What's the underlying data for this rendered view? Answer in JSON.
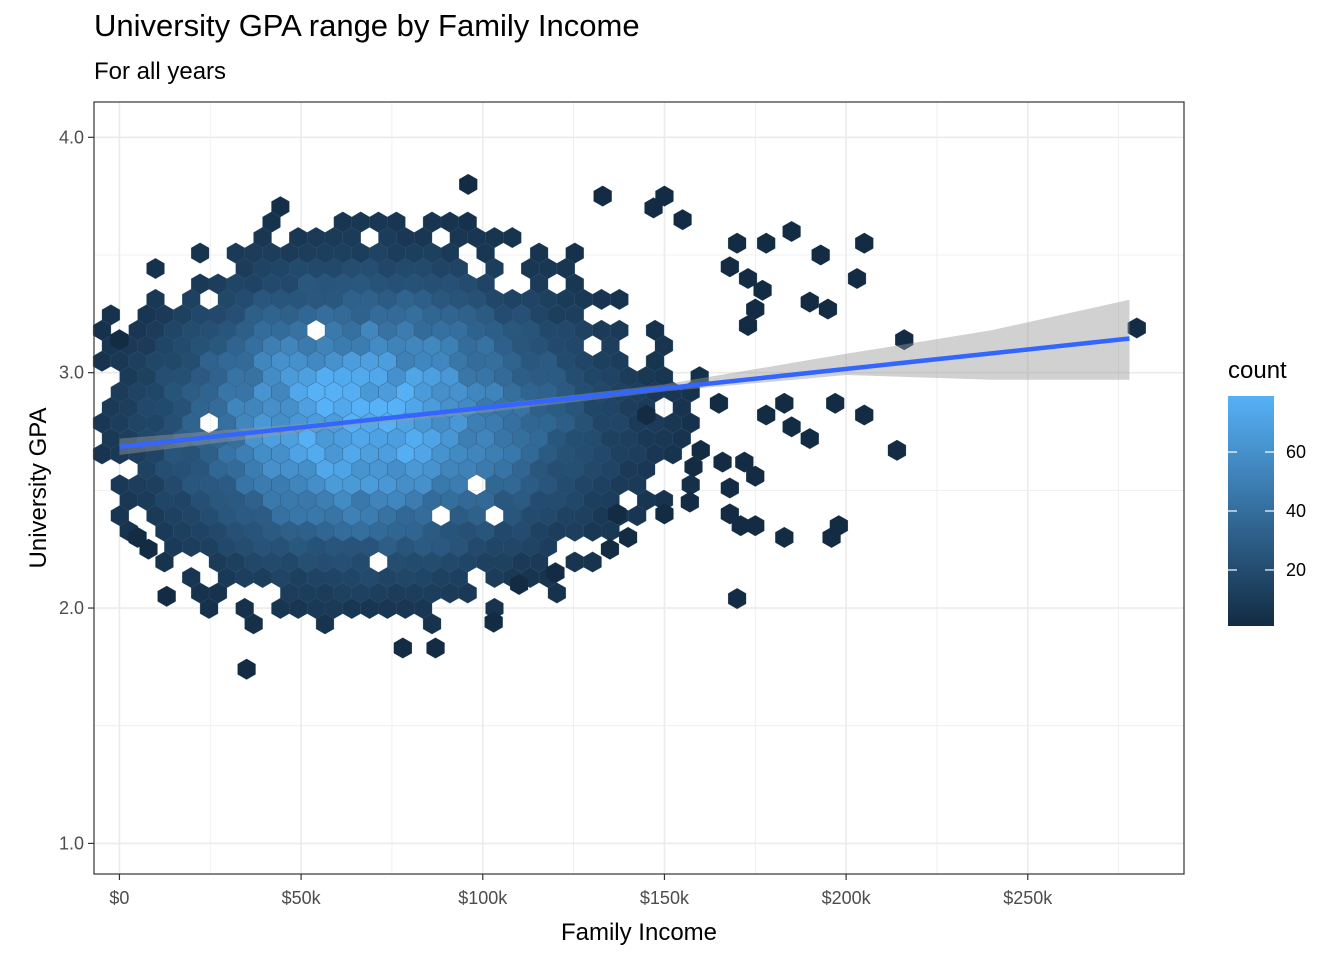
{
  "title": "University GPA range by Family Income",
  "subtitle": "For all years",
  "chart_data": {
    "type": "hexbin",
    "title": "University GPA range by Family Income",
    "subtitle": "For all years",
    "xlabel": "Family Income",
    "ylabel": "University GPA",
    "xlim": [
      -7000,
      293000
    ],
    "ylim": [
      0.87,
      4.15
    ],
    "x_ticks": [
      {
        "value": 0,
        "label": "$0"
      },
      {
        "value": 50000,
        "label": "$50k"
      },
      {
        "value": 100000,
        "label": "$100k"
      },
      {
        "value": 150000,
        "label": "$150k"
      },
      {
        "value": 200000,
        "label": "$200k"
      },
      {
        "value": 250000,
        "label": "$250k"
      }
    ],
    "y_ticks": [
      {
        "value": 1.0,
        "label": "1.0"
      },
      {
        "value": 2.0,
        "label": "2.0"
      },
      {
        "value": 3.0,
        "label": "3.0"
      },
      {
        "value": 4.0,
        "label": "4.0"
      }
    ],
    "grid": true,
    "legend": {
      "title": "count",
      "position": "right",
      "range": [
        1,
        79
      ],
      "ticks": [
        20,
        40,
        60
      ],
      "colors": {
        "low": "#132b43",
        "high": "#56b1f7"
      }
    },
    "density": {
      "center_income": 64000,
      "center_gpa": 2.8,
      "peak_count": 79,
      "income_sd": 32000,
      "gpa_sd": 0.38
    },
    "outliers": [
      {
        "x": 0,
        "y": 3.14
      },
      {
        "x": 280000,
        "y": 3.19
      },
      {
        "x": 216000,
        "y": 3.14
      },
      {
        "x": 214000,
        "y": 2.67
      },
      {
        "x": 205000,
        "y": 2.82
      },
      {
        "x": 203000,
        "y": 3.4
      },
      {
        "x": 205000,
        "y": 3.55
      },
      {
        "x": 197000,
        "y": 2.87
      },
      {
        "x": 170000,
        "y": 2.04
      },
      {
        "x": 183000,
        "y": 2.3
      },
      {
        "x": 196000,
        "y": 2.3
      },
      {
        "x": 198000,
        "y": 2.35
      },
      {
        "x": 190000,
        "y": 2.72
      },
      {
        "x": 172000,
        "y": 2.62
      },
      {
        "x": 175000,
        "y": 2.56
      },
      {
        "x": 168000,
        "y": 2.51
      },
      {
        "x": 168000,
        "y": 2.4
      },
      {
        "x": 171000,
        "y": 2.35
      },
      {
        "x": 175000,
        "y": 2.35
      },
      {
        "x": 96000,
        "y": 3.8
      },
      {
        "x": 133000,
        "y": 3.75
      },
      {
        "x": 150000,
        "y": 3.75
      },
      {
        "x": 147000,
        "y": 3.7
      },
      {
        "x": 155000,
        "y": 3.65
      },
      {
        "x": 170000,
        "y": 3.55
      },
      {
        "x": 178000,
        "y": 3.55
      },
      {
        "x": 185000,
        "y": 3.6
      },
      {
        "x": 193000,
        "y": 3.5
      },
      {
        "x": 190000,
        "y": 3.3
      },
      {
        "x": 195000,
        "y": 3.27
      },
      {
        "x": 5000,
        "y": 2.3
      },
      {
        "x": 8000,
        "y": 2.25
      },
      {
        "x": 13000,
        "y": 2.05
      },
      {
        "x": 35000,
        "y": 1.74
      },
      {
        "x": 78000,
        "y": 1.83
      },
      {
        "x": 87000,
        "y": 1.83
      },
      {
        "x": 103000,
        "y": 1.94
      },
      {
        "x": 110000,
        "y": 2.1
      },
      {
        "x": 120000,
        "y": 2.15
      },
      {
        "x": 135000,
        "y": 2.25
      },
      {
        "x": 140000,
        "y": 2.3
      },
      {
        "x": 137000,
        "y": 2.4
      },
      {
        "x": 150000,
        "y": 2.4
      },
      {
        "x": 157000,
        "y": 2.45
      },
      {
        "x": 158000,
        "y": 2.6
      },
      {
        "x": 160000,
        "y": 2.67
      },
      {
        "x": 166000,
        "y": 2.62
      },
      {
        "x": 145000,
        "y": 2.82
      },
      {
        "x": 178000,
        "y": 2.82
      },
      {
        "x": 185000,
        "y": 2.77
      },
      {
        "x": 183000,
        "y": 2.87
      },
      {
        "x": 165000,
        "y": 2.87
      },
      {
        "x": 173000,
        "y": 3.2
      },
      {
        "x": 175000,
        "y": 3.27
      },
      {
        "x": 168000,
        "y": 3.45
      },
      {
        "x": 173000,
        "y": 3.4
      },
      {
        "x": 177000,
        "y": 3.35
      }
    ],
    "trend_line": {
      "x": [
        0,
        278000
      ],
      "y": [
        2.685,
        3.145
      ]
    },
    "confidence_band": {
      "x": [
        0,
        60000,
        100000,
        150000,
        200000,
        240000,
        278000
      ],
      "upper": [
        2.72,
        2.795,
        2.86,
        2.95,
        3.08,
        3.18,
        3.31
      ],
      "lower": [
        2.65,
        2.765,
        2.83,
        2.92,
        2.99,
        2.97,
        2.97
      ]
    }
  }
}
